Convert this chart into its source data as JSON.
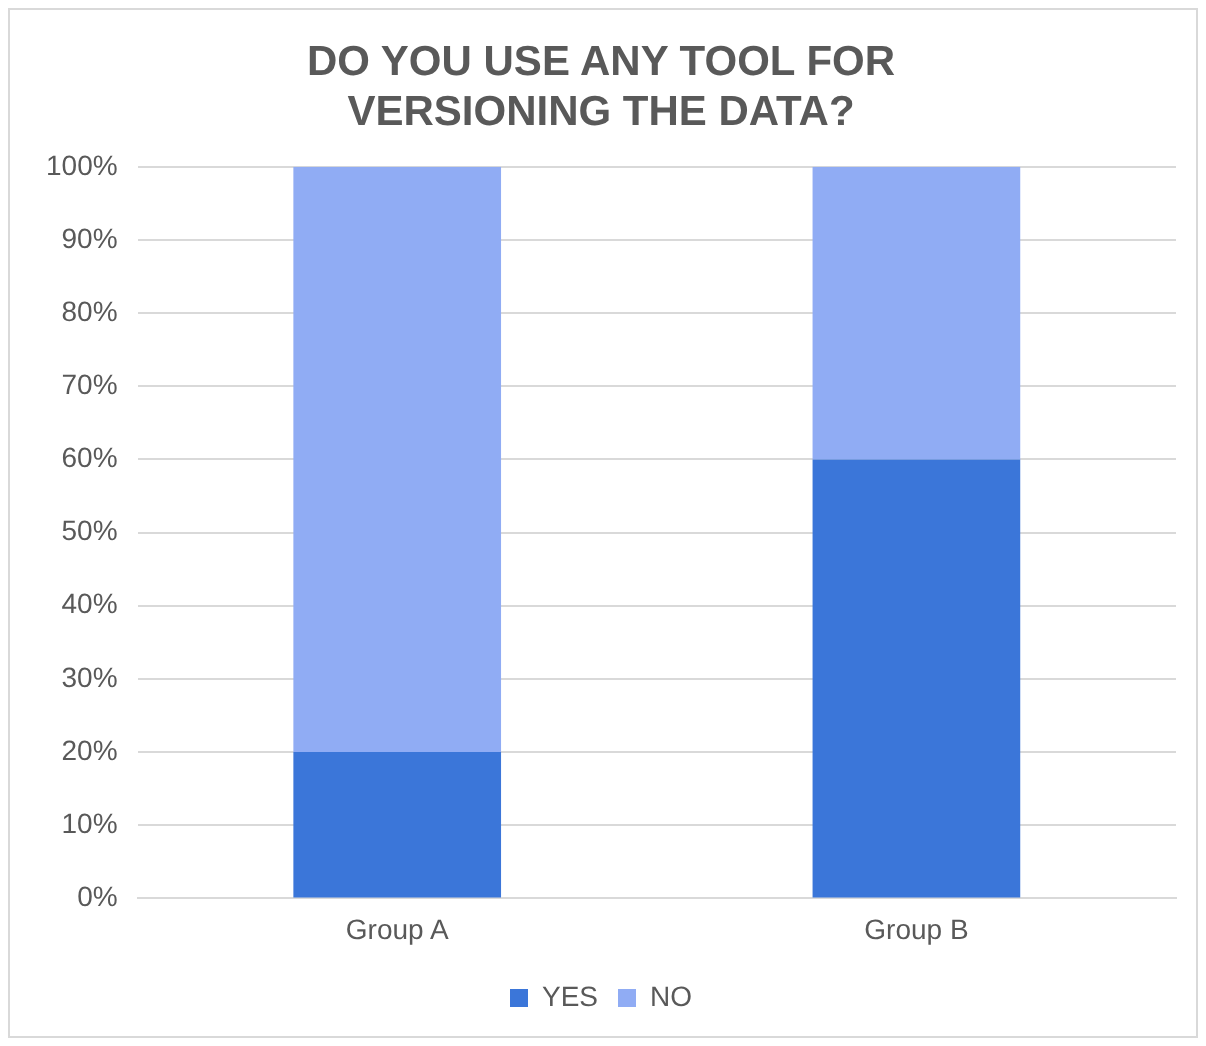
{
  "chart_data": {
    "type": "bar",
    "title": "DO YOU USE ANY TOOL FOR VERSIONING THE DATA?",
    "categories": [
      "Group A",
      "Group B"
    ],
    "series": [
      {
        "name": "YES",
        "color": "#3b76d9",
        "values": [
          20,
          60
        ]
      },
      {
        "name": "NO",
        "color": "#90acf4",
        "values": [
          80,
          40
        ]
      }
    ],
    "stacked": true,
    "ylim": [
      0,
      100
    ],
    "yticks": [
      {
        "value": 0,
        "label": "0%"
      },
      {
        "value": 10,
        "label": "10%"
      },
      {
        "value": 20,
        "label": "20%"
      },
      {
        "value": 30,
        "label": "30%"
      },
      {
        "value": 40,
        "label": "40%"
      },
      {
        "value": 50,
        "label": "50%"
      },
      {
        "value": 60,
        "label": "60%"
      },
      {
        "value": 70,
        "label": "70%"
      },
      {
        "value": 80,
        "label": "80%"
      },
      {
        "value": 90,
        "label": "90%"
      },
      {
        "value": 100,
        "label": "100%"
      }
    ],
    "grid": "y",
    "legend": "bottom"
  }
}
